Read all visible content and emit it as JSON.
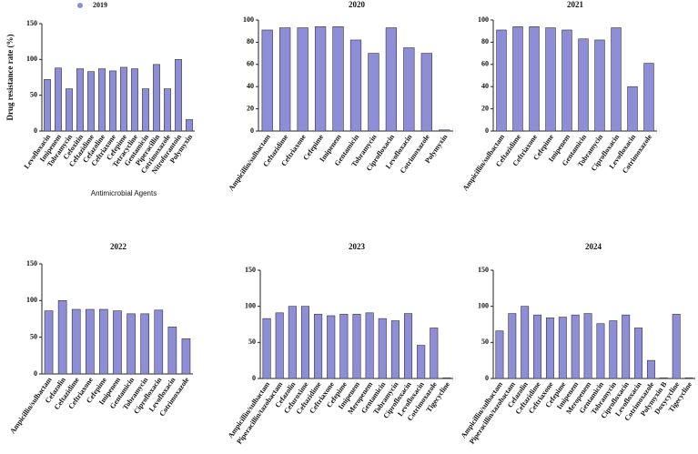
{
  "chart_data": [
    {
      "type": "bar",
      "series": [
        {
          "name": "2019",
          "color": "#8e8ed8",
          "values": [
            72,
            88,
            59,
            87,
            83,
            87,
            84,
            89,
            87,
            59,
            93,
            59,
            100,
            16
          ]
        }
      ],
      "y_label": "Drug resistance rate (%)",
      "x_label": "Antimicrobial Agents",
      "categories": [
        "Levofloxacin",
        "Imipenem",
        "Tobramycin",
        "Cefoxitin",
        "Ceftazidime",
        "Cefazoline",
        "Ceftriaxone",
        "Cefepime",
        "Tetracycline",
        "Gentamicin",
        "Piperacillin",
        "Cotrimoxazole",
        "Nitrofurantoin",
        "Polymyxin"
      ],
      "ylim": [
        0,
        150
      ],
      "yticks": [
        0,
        50,
        100,
        150
      ]
    },
    {
      "type": "bar",
      "title": "2020",
      "color": "#8e8ed8",
      "categories": [
        "Ampicillin/sulbactam",
        "Ceftazidime",
        "Ceftriaxone",
        "Cefepime",
        "Imipenem",
        "Gentamicin",
        "Tobramycin",
        "Ciprofloxacin",
        "Levofloxacin",
        "Cotrimoxazole",
        "Polymyxin"
      ],
      "values": [
        91,
        93,
        93,
        94,
        94,
        82,
        70,
        93,
        75,
        70,
        1
      ],
      "ylim": [
        0,
        100
      ],
      "yticks": [
        0,
        20,
        40,
        60,
        80,
        100
      ]
    },
    {
      "type": "bar",
      "title": "2021",
      "color": "#8e8ed8",
      "categories": [
        "Ampicillin/sulbactam",
        "Ceftazidime",
        "Ceftriaxone",
        "Cefepime",
        "Imipenem",
        "Gentamicin",
        "Tobramycin",
        "Ciprofloxacin",
        "Levofloxacin",
        "Cotrimoxazole"
      ],
      "values": [
        91,
        94,
        94,
        93,
        91,
        83,
        82,
        93,
        40,
        61
      ],
      "ylim": [
        0,
        100
      ],
      "yticks": [
        0,
        20,
        40,
        60,
        80,
        100
      ]
    },
    {
      "type": "bar",
      "title": "2022",
      "color": "#8e8ed8",
      "categories": [
        "Ampicillin/sulbactam",
        "Cefazolin",
        "Ceftazidime",
        "Ceftriaxone",
        "Cefepime",
        "Imipenem",
        "Gentamicin",
        "Tobramycin",
        "Ciprofloxacin",
        "Levofloxacin",
        "Cotrimoxazole"
      ],
      "values": [
        86,
        100,
        88,
        88,
        88,
        86,
        82,
        82,
        87,
        64,
        48
      ],
      "ylim": [
        0,
        150
      ],
      "yticks": [
        0,
        50,
        100,
        150
      ]
    },
    {
      "type": "bar",
      "title": "2023",
      "color": "#8e8ed8",
      "categories": [
        "Ampicillin/sulbactam",
        "Piperacillin/tazobactam",
        "Cefazolin",
        "Cefuroxime",
        "Ceftazidime",
        "Ceftriaxone",
        "Cefepime",
        "Imipenem",
        "Meropenem",
        "Gentamicin",
        "Tobramycin",
        "Ciprofloxacin",
        "Levofloxacin",
        "Cotrimoxazole",
        "Tigecycline"
      ],
      "values": [
        83,
        91,
        100,
        100,
        89,
        87,
        89,
        89,
        91,
        83,
        80,
        90,
        46,
        70,
        1
      ],
      "ylim": [
        0,
        150
      ],
      "yticks": [
        0,
        50,
        100,
        150
      ]
    },
    {
      "type": "bar",
      "title": "2024",
      "color": "#8e8ed8",
      "categories": [
        "Ampicillin/sulbactam",
        "Piperacillin/tazobactam",
        "Cefazolin",
        "Ceftazidime",
        "Ceftriaxone",
        "Cefepime",
        "Imipenem",
        "Meropenem",
        "Gentamicin",
        "Tobramycin",
        "Ciprofloxacin",
        "Levofloxacin",
        "Cotrimoxazole",
        "Polymyxin B",
        "Doxycycline",
        "Tigecycline"
      ],
      "values": [
        66,
        90,
        100,
        88,
        84,
        85,
        88,
        90,
        76,
        80,
        88,
        70,
        25,
        1,
        89,
        1
      ],
      "ylim": [
        0,
        150
      ],
      "yticks": [
        0,
        50,
        100,
        150
      ]
    }
  ]
}
